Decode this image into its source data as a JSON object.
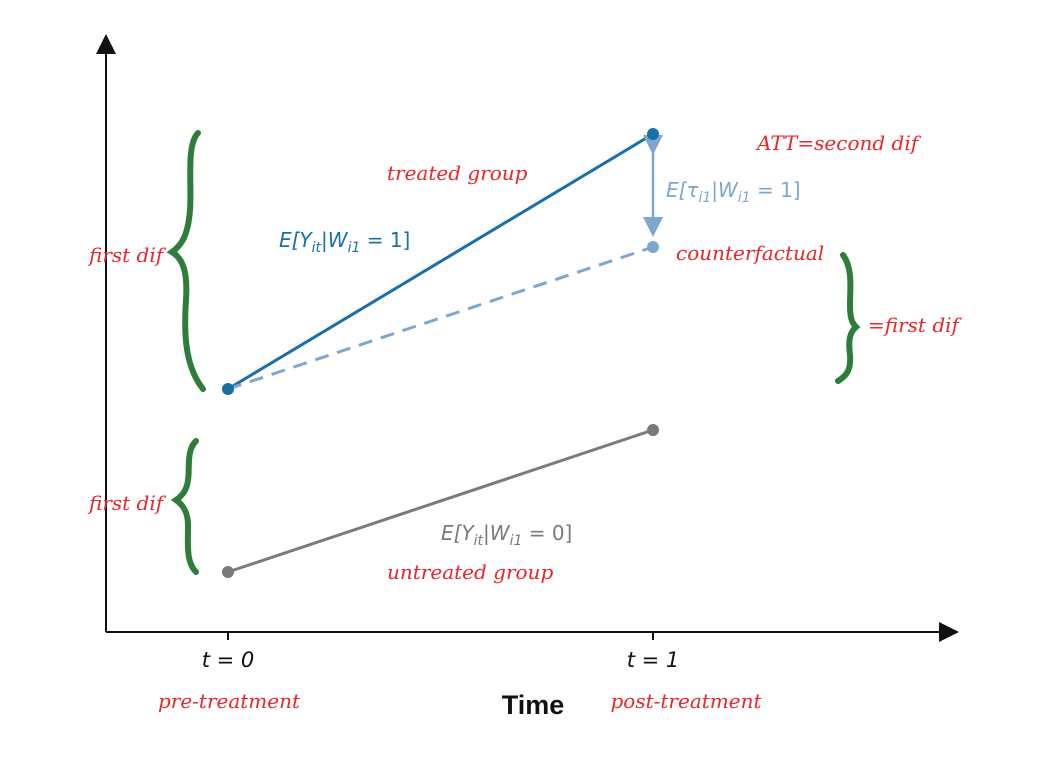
{
  "axis": {
    "x_title": "Time",
    "x_ticks": [
      "t = 0",
      "t = 1"
    ],
    "x_tick_notes": [
      "pre-treatment",
      "post-treatment"
    ]
  },
  "labels": {
    "treated_group": "treated group",
    "untreated_group": "untreated group",
    "counterfactual": "counterfactual",
    "att": "ATT=second dif",
    "first_dif_top": "first dif",
    "first_dif_bottom": "first dif",
    "eq_first_dif": "=first dif"
  },
  "equations": {
    "treated": {
      "pre": "E[Y",
      "sub1": "it",
      "mid": "|W",
      "sub2": "i1",
      "post": " = 1]"
    },
    "untreated": {
      "pre": "E[Y",
      "sub1": "it",
      "mid": "|W",
      "sub2": "i1",
      "post": " = 0]"
    },
    "effect": {
      "pre": "E[τ",
      "sub1": "i1",
      "mid": "|W",
      "sub2": "i1",
      "post": " = 1]"
    }
  },
  "colors": {
    "treated": "#1a6fa6",
    "counterfactual": "#7fa6cf",
    "untreated": "#7a7a7a",
    "brace": "#2e7d3b",
    "annotation": "#e8262b",
    "axis": "#111111"
  }
}
